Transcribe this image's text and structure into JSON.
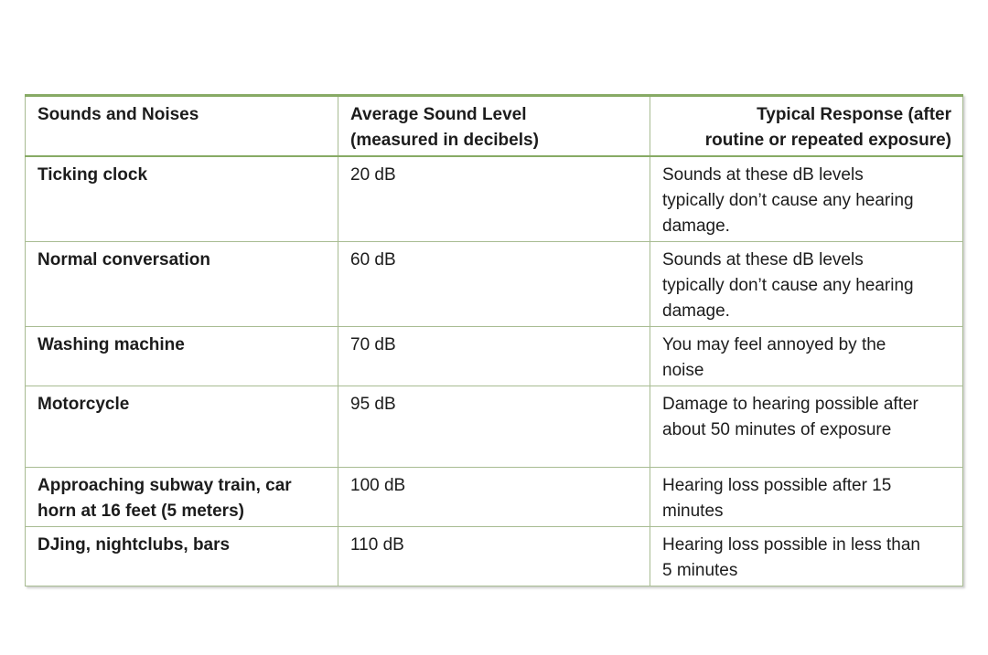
{
  "document": {
    "background": "#ffffff",
    "text_color": "#1c1c1c",
    "table_border_color": "#a8bc92",
    "table_accent_border_color": "#87aa65"
  },
  "table": {
    "columns": [
      {
        "id": "sounds",
        "align": "left",
        "lines": [
          "Sounds and Noises"
        ]
      },
      {
        "id": "level",
        "align": "left",
        "lines": [
          "Average Sound Level",
          "(measured in decibels)"
        ]
      },
      {
        "id": "response",
        "align": "right",
        "lines": [
          "Typical Response (after",
          "routine or repeated exposure)"
        ]
      }
    ],
    "rows": [
      {
        "sound": "Ticking clock",
        "level": "20 dB",
        "response": "Sounds at these dB levels typically don’t cause any hearing damage."
      },
      {
        "sound": "Normal conversation",
        "level": "60 dB",
        "response": "Sounds at these dB levels typically don’t cause any hearing damage."
      },
      {
        "sound": "Washing machine",
        "level": "70 dB",
        "response": "You may feel annoyed by the noise"
      },
      {
        "sound": "Motorcycle",
        "level": "95 dB",
        "response": "Damage to hearing possible after about 50 minutes of exposure"
      },
      {
        "sound": "Approaching subway train, car horn at 16 feet (5 meters)",
        "level": "100 dB",
        "response": "Hearing loss possible after 15 minutes"
      },
      {
        "sound": "DJing, nightclubs, bars",
        "level": "110 dB",
        "response": "Hearing loss possible in less than 5 minutes"
      }
    ]
  }
}
